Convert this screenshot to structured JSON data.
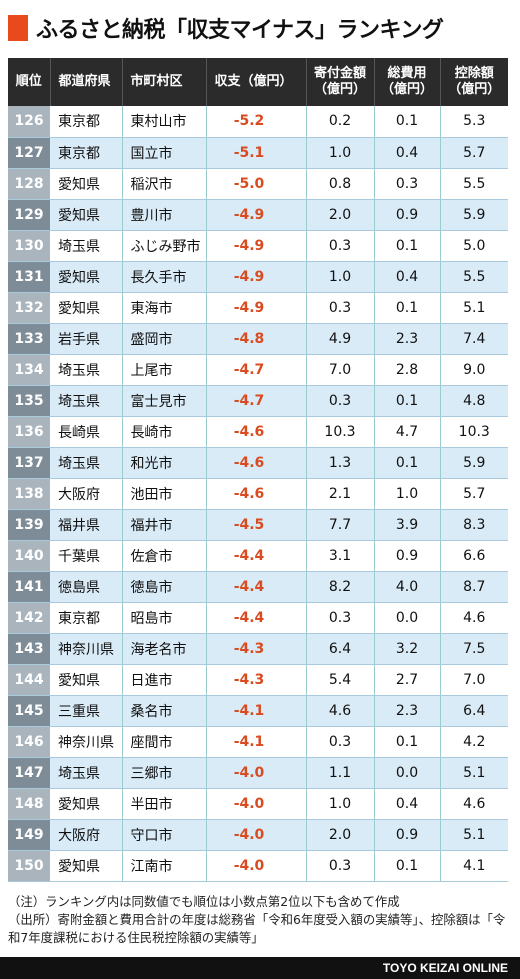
{
  "title": "ふるさと納税「収支マイナス」ランキング",
  "accent_color": "#e8491d",
  "table": {
    "headers": [
      "順位",
      "都道府県",
      "市町村区",
      "収支（億円）",
      "寄付金額\n（億円）",
      "総費用\n（億円）",
      "控除額\n（億円）"
    ],
    "rows": [
      [
        "126",
        "東京都",
        "東村山市",
        "-5.2",
        "0.2",
        "0.1",
        "5.3"
      ],
      [
        "127",
        "東京都",
        "国立市",
        "-5.1",
        "1.0",
        "0.4",
        "5.7"
      ],
      [
        "128",
        "愛知県",
        "稲沢市",
        "-5.0",
        "0.8",
        "0.3",
        "5.5"
      ],
      [
        "129",
        "愛知県",
        "豊川市",
        "-4.9",
        "2.0",
        "0.9",
        "5.9"
      ],
      [
        "130",
        "埼玉県",
        "ふじみ野市",
        "-4.9",
        "0.3",
        "0.1",
        "5.0"
      ],
      [
        "131",
        "愛知県",
        "長久手市",
        "-4.9",
        "1.0",
        "0.4",
        "5.5"
      ],
      [
        "132",
        "愛知県",
        "東海市",
        "-4.9",
        "0.3",
        "0.1",
        "5.1"
      ],
      [
        "133",
        "岩手県",
        "盛岡市",
        "-4.8",
        "4.9",
        "2.3",
        "7.4"
      ],
      [
        "134",
        "埼玉県",
        "上尾市",
        "-4.7",
        "7.0",
        "2.8",
        "9.0"
      ],
      [
        "135",
        "埼玉県",
        "富士見市",
        "-4.7",
        "0.3",
        "0.1",
        "4.8"
      ],
      [
        "136",
        "長崎県",
        "長崎市",
        "-4.6",
        "10.3",
        "4.7",
        "10.3"
      ],
      [
        "137",
        "埼玉県",
        "和光市",
        "-4.6",
        "1.3",
        "0.1",
        "5.9"
      ],
      [
        "138",
        "大阪府",
        "池田市",
        "-4.6",
        "2.1",
        "1.0",
        "5.7"
      ],
      [
        "139",
        "福井県",
        "福井市",
        "-4.5",
        "7.7",
        "3.9",
        "8.3"
      ],
      [
        "140",
        "千葉県",
        "佐倉市",
        "-4.4",
        "3.1",
        "0.9",
        "6.6"
      ],
      [
        "141",
        "徳島県",
        "徳島市",
        "-4.4",
        "8.2",
        "4.0",
        "8.7"
      ],
      [
        "142",
        "東京都",
        "昭島市",
        "-4.4",
        "0.3",
        "0.0",
        "4.6"
      ],
      [
        "143",
        "神奈川県",
        "海老名市",
        "-4.3",
        "6.4",
        "3.2",
        "7.5"
      ],
      [
        "144",
        "愛知県",
        "日進市",
        "-4.3",
        "5.4",
        "2.7",
        "7.0"
      ],
      [
        "145",
        "三重県",
        "桑名市",
        "-4.1",
        "4.6",
        "2.3",
        "6.4"
      ],
      [
        "146",
        "神奈川県",
        "座間市",
        "-4.1",
        "0.3",
        "0.1",
        "4.2"
      ],
      [
        "147",
        "埼玉県",
        "三郷市",
        "-4.0",
        "1.1",
        "0.0",
        "5.1"
      ],
      [
        "148",
        "愛知県",
        "半田市",
        "-4.0",
        "1.0",
        "0.4",
        "4.6"
      ],
      [
        "149",
        "大阪府",
        "守口市",
        "-4.0",
        "2.0",
        "0.9",
        "5.1"
      ],
      [
        "150",
        "愛知県",
        "江南市",
        "-4.0",
        "0.3",
        "0.1",
        "4.1"
      ]
    ]
  },
  "notes": [
    "（注）ランキング内は同数値でも順位は小数点第2位以下も含めて作成",
    "（出所）寄附金額と費用合計の年度は総務省「令和6年度受入額の実績等」、控除額は「令和7年度課税における住民税控除額の実績等」"
  ],
  "footer": "TOYO KEIZAI ONLINE"
}
